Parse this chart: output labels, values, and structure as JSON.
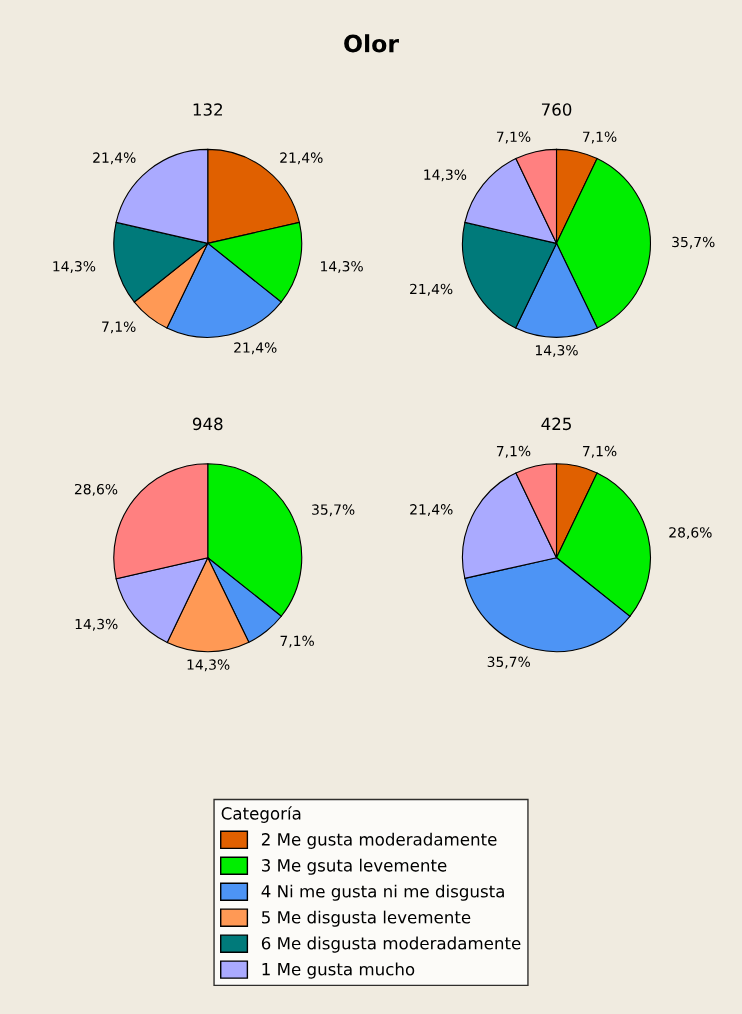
{
  "chart_data": [
    {
      "type": "pie",
      "title": "132",
      "annotations": [
        "Olor"
      ],
      "legend": "bottom",
      "legend_title": "Categoría",
      "categories": [
        "2 Me gusta moderadamente",
        "3 Me gsuta levemente",
        "4 Ni me gusta ni me disgusta",
        "5 Me disgusta levemente",
        "6 Me disgusta moderadamente",
        "1 Me gusta mucho"
      ],
      "values": [
        21.4,
        14.3,
        21.4,
        7.1,
        14.3,
        21.4
      ],
      "value_labels": [
        "21,4%",
        "14,3%",
        "21,4%",
        "7,1%",
        "14,3%",
        "21,4%"
      ],
      "colors": [
        "#e06000",
        "#00ee00",
        "#4d94f5",
        "#ff9955",
        "#007a7a",
        "#aaaaff"
      ]
    },
    {
      "type": "pie",
      "title": "760",
      "categories": [
        null,
        null,
        null,
        null,
        null,
        null
      ],
      "values": [
        7.1,
        35.7,
        14.3,
        21.4,
        14.3,
        7.1
      ],
      "value_labels": [
        "7,1%",
        "35,7%",
        "14,3%",
        "21,4%",
        "14,3%",
        "7,1%"
      ],
      "colors": [
        "#e06000",
        "#00ee00",
        "#4d94f5",
        "#007a7a",
        "#aaaaff",
        "#ff8080"
      ]
    },
    {
      "type": "pie",
      "title": "948",
      "categories": [
        null,
        null,
        null,
        null,
        null
      ],
      "values": [
        35.7,
        7.1,
        14.3,
        14.3,
        28.6
      ],
      "value_labels": [
        "35,7%",
        "7,1%",
        "14,3%",
        "14,3%",
        "28,6%"
      ],
      "colors": [
        "#00ee00",
        "#4d94f5",
        "#ff9955",
        "#aaaaff",
        "#ff8080"
      ]
    },
    {
      "type": "pie",
      "title": "425",
      "categories": [
        null,
        null,
        null,
        null,
        null
      ],
      "values": [
        7.1,
        28.6,
        35.7,
        21.4,
        7.1
      ],
      "value_labels": [
        "7,1%",
        "28,6%",
        "35,7%",
        "21,4%",
        "7,1%"
      ],
      "colors": [
        "#e06000",
        "#00ee00",
        "#4d94f5",
        "#aaaaff",
        "#ff8080"
      ]
    }
  ]
}
